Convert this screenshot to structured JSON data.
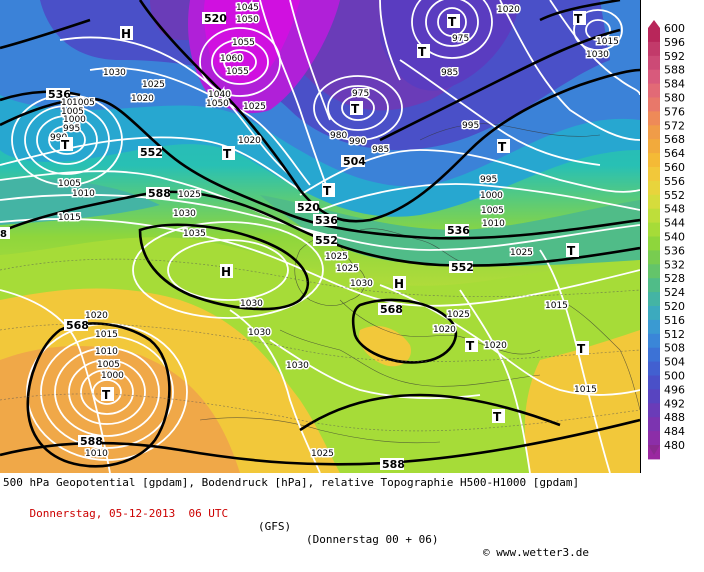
{
  "footer": {
    "line1": "500 hPa Geopotential [gpdam], Bodendruck [hPa], relative Topographie H500-H1000 [gpdam]",
    "date": "Donnerstag, 05-12-2013  06 UTC",
    "model": "(GFS)",
    "run": "(Donnerstag 00 + 06)",
    "copyright": "© www.wetter3.de"
  },
  "legend": {
    "levels": [
      "600",
      "596",
      "592",
      "588",
      "584",
      "580",
      "576",
      "572",
      "568",
      "564",
      "560",
      "556",
      "552",
      "548",
      "544",
      "540",
      "536",
      "532",
      "528",
      "524",
      "520",
      "516",
      "512",
      "508",
      "504",
      "500",
      "496",
      "492",
      "488",
      "484",
      "480"
    ],
    "colors": [
      "#b8265a",
      "#c23a6a",
      "#cc4a76",
      "#d85a7c",
      "#e26a76",
      "#e8786a",
      "#ee8a58",
      "#f09c48",
      "#f2aa3c",
      "#f4ba36",
      "#f2c83a",
      "#e8d43c",
      "#d6dc3c",
      "#bede3a",
      "#a6dc38",
      "#8ed63c",
      "#78cc50",
      "#64c46a",
      "#50bc88",
      "#44b4a4",
      "#3caabe",
      "#3a9ad2",
      "#3a86d8",
      "#3c72d6",
      "#4260d0",
      "#4a50c8",
      "#5844c0",
      "#6a3cb8",
      "#7c34b0",
      "#8c2ea8",
      "#9a28a0"
    ],
    "top_color": "#b8265a",
    "bottom_color": "#8a2a90"
  },
  "map": {
    "high_symbol": "H",
    "low_symbol": "T",
    "geopotential_labels": [
      "536",
      "552",
      "588",
      "520",
      "504",
      "520",
      "536",
      "536",
      "552",
      "552",
      "568",
      "568",
      "588",
      "588",
      "588"
    ],
    "pressure_labels": [
      "1045",
      "1050",
      "1055",
      "1060",
      "1055",
      "1050",
      "1040",
      "1025",
      "1020",
      "1030",
      "1025",
      "1020",
      "1015",
      "1005",
      "1000",
      "995",
      "990",
      "1010",
      "1005",
      "1025",
      "1030",
      "1035",
      "1030",
      "1020",
      "1015",
      "1010",
      "1005",
      "1000",
      "1010",
      "1030",
      "1025",
      "975",
      "985",
      "995",
      "1000",
      "1005",
      "1010",
      "980",
      "975",
      "990",
      "985",
      "995",
      "1020",
      "1015",
      "1025",
      "1030",
      "1020",
      "1025",
      "1015",
      "1020",
      "1030",
      "1030",
      "1025",
      "1015",
      "1020",
      "1015",
      "1025",
      "1005"
    ]
  }
}
